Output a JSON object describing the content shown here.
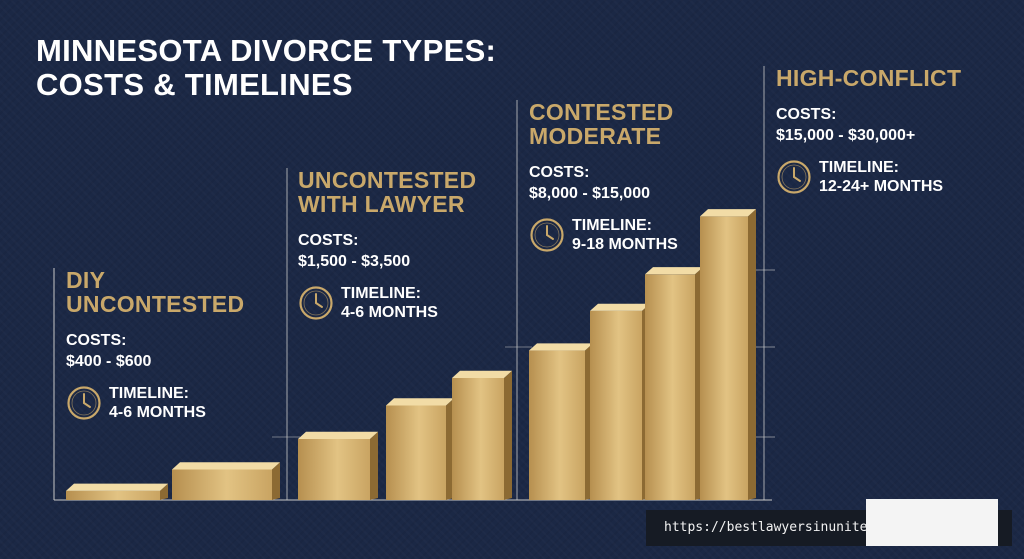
{
  "title": {
    "line1": "MINNESOTA DIVORCE TYPES:",
    "line2": "COSTS & TIMELINES"
  },
  "sections": [
    {
      "title_lines": [
        "DIY",
        "UNCONTESTED"
      ],
      "costs_label": "COSTS:",
      "costs_value": "$400 - $600",
      "timeline_label": "TIMELINE:",
      "timeline_value": "4-6 MONTHS"
    },
    {
      "title_lines": [
        "UNCONTESTED",
        "WITH LAWYER"
      ],
      "costs_label": "COSTS:",
      "costs_value": "$1,500 - $3,500",
      "timeline_label": "TIMELINE:",
      "timeline_value": "4-6 MONTHS"
    },
    {
      "title_lines": [
        "CONTESTED",
        "MODERATE"
      ],
      "costs_label": "COSTS:",
      "costs_value": "$8,000 - $15,000",
      "timeline_label": "TIMELINE:",
      "timeline_value": "9-18 MONTHS"
    },
    {
      "title_lines": [
        "HIGH-CONFLICT"
      ],
      "costs_label": "COSTS:",
      "costs_value": "$15,000 - $30,000+",
      "timeline_label": "TIMELINE:",
      "timeline_value": "12-24+ MONTHS"
    }
  ],
  "source_url": "https://bestlawyersinunitedstates.com/",
  "chart_data": {
    "type": "bar",
    "title": "MINNESOTA DIVORCE TYPES: COSTS & TIMELINES",
    "xlabel": "",
    "ylabel": "",
    "grid": false,
    "note": "Decorative bars; no numeric axis is printed. Heights read as relative level (0-1).",
    "groups": [
      "DIY UNCONTESTED",
      "UNCONTESTED WITH LAWYER",
      "CONTESTED MODERATE",
      "HIGH-CONFLICT"
    ],
    "bars": [
      {
        "group": 0,
        "level": 0.03
      },
      {
        "group": 0,
        "level": 0.1
      },
      {
        "group": 1,
        "level": 0.2
      },
      {
        "group": 1,
        "level": 0.31
      },
      {
        "group": 1,
        "level": 0.4
      },
      {
        "group": 2,
        "level": 0.49
      },
      {
        "group": 2,
        "level": 0.62
      },
      {
        "group": 2,
        "level": 0.74
      },
      {
        "group": 2,
        "level": 0.93
      }
    ],
    "colors": {
      "bar_front_light": "#e7c98a",
      "bar_front_dark": "#b68f4f",
      "bar_side": "#8c6a33",
      "bar_top": "#f2dca6",
      "axis": "#c8c8c8",
      "accent": "#c9a86a"
    }
  }
}
